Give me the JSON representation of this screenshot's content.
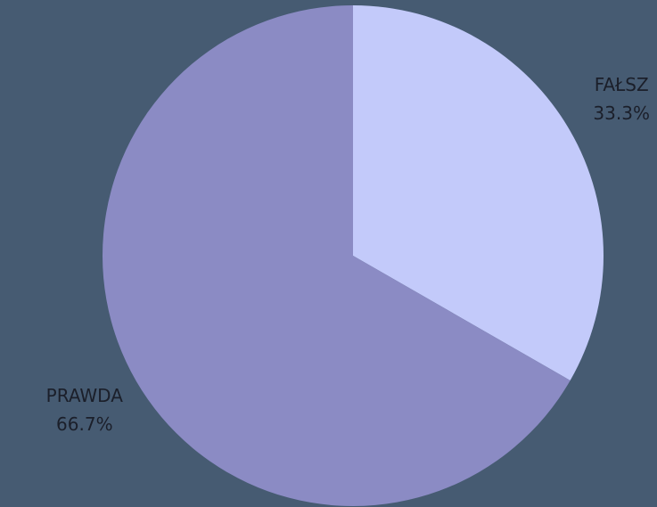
{
  "chart_data": {
    "type": "pie",
    "categories": [
      "FAŁSZ",
      "PRAWDA"
    ],
    "values": [
      33.3,
      66.7
    ],
    "value_labels": [
      "33.3%",
      "66.7%"
    ],
    "colors": [
      "#c3cafa",
      "#8b8bc4"
    ]
  }
}
